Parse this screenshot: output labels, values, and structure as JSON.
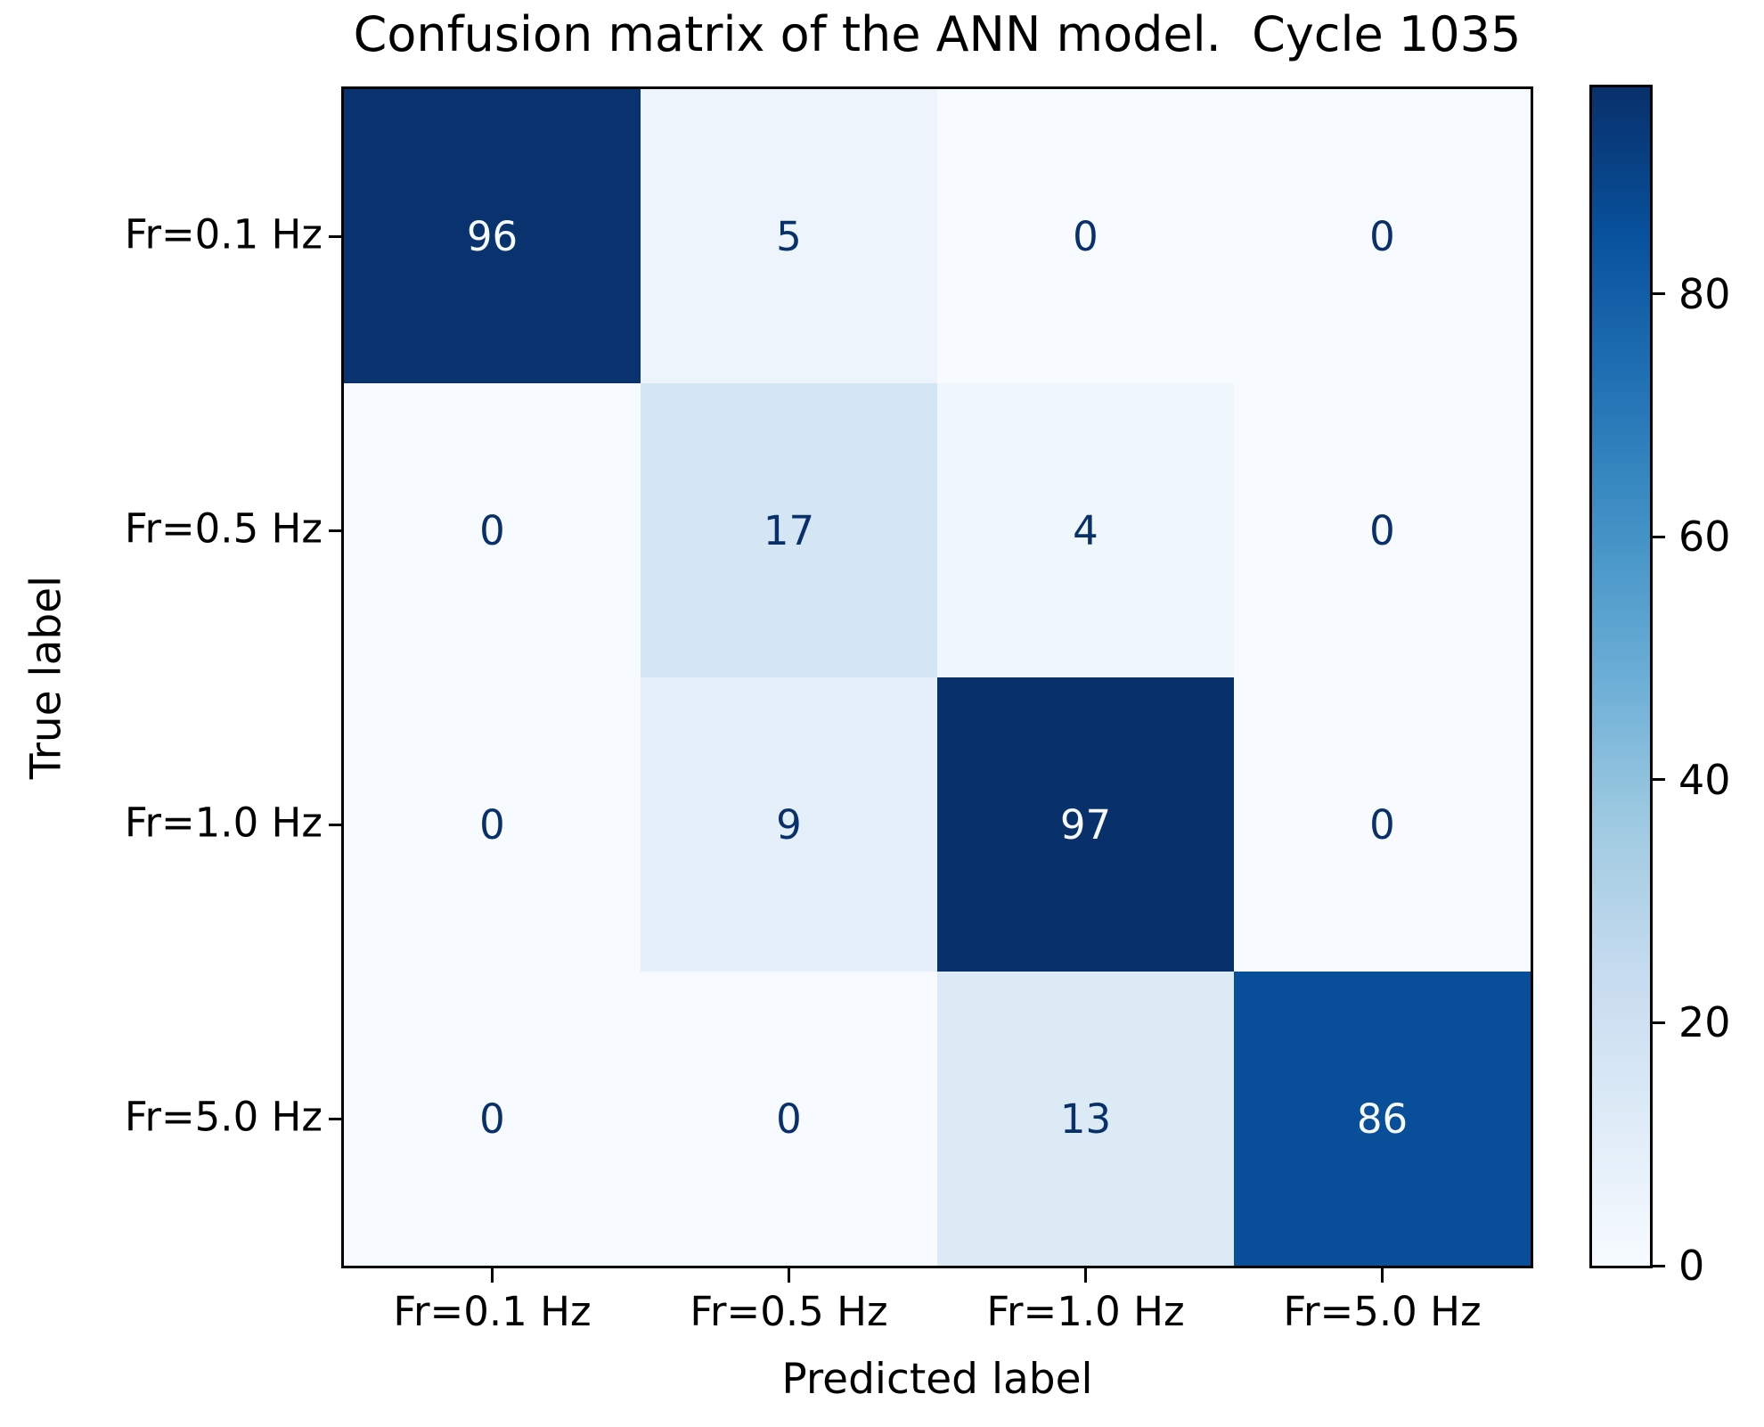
{
  "figure": {
    "background": "#ffffff",
    "axis_color": "#000000"
  },
  "chart_data": {
    "type": "heatmap",
    "title": "Confusion matrix of the ANN model.  Cycle 1035",
    "xlabel": "Predicted label",
    "ylabel": "True label",
    "x_tick_labels": [
      "Fr=0.1 Hz",
      "Fr=0.5 Hz",
      "Fr=1.0 Hz",
      "Fr=5.0 Hz"
    ],
    "y_tick_labels": [
      "Fr=0.1 Hz",
      "Fr=0.5 Hz",
      "Fr=1.0 Hz",
      "Fr=5.0 Hz"
    ],
    "matrix": [
      [
        96,
        5,
        0,
        0
      ],
      [
        0,
        17,
        4,
        0
      ],
      [
        0,
        9,
        97,
        0
      ],
      [
        0,
        0,
        13,
        86
      ]
    ],
    "colormap": "Blues",
    "vmin": 0,
    "vmax": 97,
    "legend_position": "right-colorbar",
    "grid": false,
    "colorbar_ticks": [
      0,
      20,
      40,
      60,
      80
    ],
    "colorbar_gradient_bottom_to_top": [
      "#f7fbff",
      "#deebf7",
      "#c6dbef",
      "#9ecae1",
      "#6baed6",
      "#4292c6",
      "#2171b5",
      "#08519c",
      "#08306b"
    ],
    "cell_colors": [
      [
        "#08336f",
        "#edf4fc",
        "#f7fbff",
        "#f7fbff"
      ],
      [
        "#f7fbff",
        "#d4e5f4",
        "#eff6fc",
        "#f7fbff"
      ],
      [
        "#f7fbff",
        "#e4eff9",
        "#08306b",
        "#f7fbff"
      ],
      [
        "#f7fbff",
        "#f7fbff",
        "#dceaf6",
        "#084e98"
      ]
    ],
    "cell_text_colors": [
      [
        "#f7fbff",
        "#08306b",
        "#08306b",
        "#08306b"
      ],
      [
        "#08306b",
        "#08306b",
        "#08306b",
        "#08306b"
      ],
      [
        "#08306b",
        "#08306b",
        "#f7fbff",
        "#08306b"
      ],
      [
        "#08306b",
        "#08306b",
        "#08306b",
        "#f7fbff"
      ]
    ]
  }
}
